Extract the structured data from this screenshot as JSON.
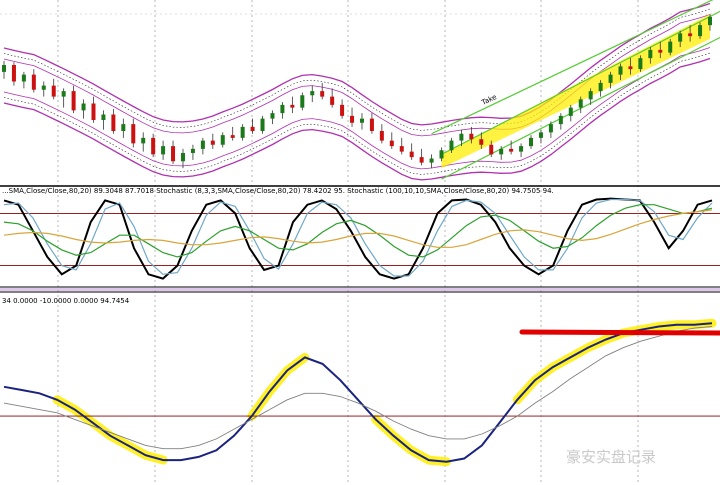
{
  "chart_data": [
    {
      "type": "candlestick",
      "panel": "price",
      "annotation": "Take",
      "candles": [
        [
          1.0,
          1.08,
          0.95,
          1.05
        ],
        [
          1.05,
          1.07,
          0.9,
          0.93
        ],
        [
          0.93,
          1.0,
          0.88,
          0.98
        ],
        [
          0.98,
          1.02,
          0.85,
          0.87
        ],
        [
          0.87,
          0.93,
          0.82,
          0.9
        ],
        [
          0.9,
          0.95,
          0.8,
          0.82
        ],
        [
          0.82,
          0.88,
          0.74,
          0.86
        ],
        [
          0.86,
          0.9,
          0.7,
          0.72
        ],
        [
          0.72,
          0.8,
          0.66,
          0.77
        ],
        [
          0.77,
          0.82,
          0.63,
          0.65
        ],
        [
          0.65,
          0.72,
          0.58,
          0.69
        ],
        [
          0.69,
          0.73,
          0.55,
          0.57
        ],
        [
          0.57,
          0.66,
          0.52,
          0.62
        ],
        [
          0.62,
          0.66,
          0.45,
          0.48
        ],
        [
          0.48,
          0.56,
          0.42,
          0.52
        ],
        [
          0.52,
          0.55,
          0.38,
          0.4
        ],
        [
          0.4,
          0.5,
          0.36,
          0.46
        ],
        [
          0.46,
          0.5,
          0.33,
          0.35
        ],
        [
          0.35,
          0.44,
          0.3,
          0.41
        ],
        [
          0.41,
          0.47,
          0.36,
          0.44
        ],
        [
          0.44,
          0.52,
          0.4,
          0.5
        ],
        [
          0.5,
          0.55,
          0.44,
          0.47
        ],
        [
          0.47,
          0.56,
          0.45,
          0.54
        ],
        [
          0.54,
          0.6,
          0.5,
          0.52
        ],
        [
          0.52,
          0.62,
          0.5,
          0.6
        ],
        [
          0.6,
          0.66,
          0.55,
          0.57
        ],
        [
          0.57,
          0.68,
          0.55,
          0.66
        ],
        [
          0.66,
          0.72,
          0.62,
          0.7
        ],
        [
          0.7,
          0.78,
          0.66,
          0.76
        ],
        [
          0.76,
          0.82,
          0.7,
          0.74
        ],
        [
          0.74,
          0.85,
          0.72,
          0.83
        ],
        [
          0.83,
          0.9,
          0.78,
          0.86
        ],
        [
          0.86,
          0.92,
          0.8,
          0.82
        ],
        [
          0.82,
          0.88,
          0.74,
          0.76
        ],
        [
          0.76,
          0.8,
          0.66,
          0.68
        ],
        [
          0.68,
          0.74,
          0.6,
          0.63
        ],
        [
          0.63,
          0.7,
          0.58,
          0.66
        ],
        [
          0.66,
          0.7,
          0.55,
          0.57
        ],
        [
          0.57,
          0.62,
          0.48,
          0.5
        ],
        [
          0.5,
          0.56,
          0.44,
          0.46
        ],
        [
          0.46,
          0.52,
          0.4,
          0.42
        ],
        [
          0.42,
          0.48,
          0.36,
          0.38
        ],
        [
          0.38,
          0.44,
          0.32,
          0.34
        ],
        [
          0.34,
          0.4,
          0.3,
          0.37
        ],
        [
          0.37,
          0.45,
          0.35,
          0.43
        ],
        [
          0.43,
          0.52,
          0.41,
          0.5
        ],
        [
          0.5,
          0.58,
          0.46,
          0.55
        ],
        [
          0.55,
          0.6,
          0.48,
          0.51
        ],
        [
          0.51,
          0.56,
          0.44,
          0.47
        ],
        [
          0.47,
          0.5,
          0.38,
          0.4
        ],
        [
          0.4,
          0.46,
          0.36,
          0.44
        ],
        [
          0.44,
          0.5,
          0.4,
          0.42
        ],
        [
          0.42,
          0.48,
          0.38,
          0.46
        ],
        [
          0.46,
          0.54,
          0.44,
          0.52
        ],
        [
          0.52,
          0.58,
          0.48,
          0.56
        ],
        [
          0.56,
          0.64,
          0.52,
          0.62
        ],
        [
          0.62,
          0.7,
          0.58,
          0.68
        ],
        [
          0.68,
          0.76,
          0.64,
          0.74
        ],
        [
          0.74,
          0.82,
          0.7,
          0.8
        ],
        [
          0.8,
          0.88,
          0.76,
          0.86
        ],
        [
          0.86,
          0.94,
          0.82,
          0.92
        ],
        [
          0.92,
          1.0,
          0.88,
          0.98
        ],
        [
          0.98,
          1.06,
          0.94,
          1.04
        ],
        [
          1.04,
          1.1,
          0.98,
          1.02
        ],
        [
          1.02,
          1.12,
          1.0,
          1.1
        ],
        [
          1.1,
          1.18,
          1.06,
          1.16
        ],
        [
          1.16,
          1.22,
          1.1,
          1.14
        ],
        [
          1.14,
          1.24,
          1.12,
          1.22
        ],
        [
          1.22,
          1.3,
          1.18,
          1.28
        ],
        [
          1.28,
          1.34,
          1.22,
          1.26
        ],
        [
          1.26,
          1.36,
          1.24,
          1.34
        ],
        [
          1.34,
          1.42,
          1.3,
          1.4
        ]
      ]
    },
    {
      "type": "line",
      "panel": "stochastic",
      "header": "...SMA,Close/Close,80,20) 89.3048 87.7018  Stochastic (8,3,3,SMA,Close/Close,80,20) 78.4202 95.  Stochastic (100,10,10,SMA,Close/Close,80,20) 94.7505 94.",
      "levels": [
        80,
        20
      ],
      "ylim": [
        0,
        100
      ],
      "series": [
        {
          "color": "#000000",
          "values": [
            95,
            90,
            60,
            30,
            10,
            20,
            70,
            95,
            90,
            40,
            10,
            5,
            20,
            60,
            90,
            95,
            80,
            40,
            15,
            20,
            70,
            90,
            95,
            85,
            60,
            30,
            10,
            5,
            10,
            40,
            80,
            95,
            96,
            90,
            70,
            40,
            20,
            10,
            20,
            60,
            90,
            96,
            97,
            96,
            95,
            70,
            40,
            60,
            90,
            95
          ]
        },
        {
          "color": "#6fa8c8",
          "values": [
            90,
            92,
            75,
            45,
            20,
            15,
            45,
            85,
            92,
            65,
            25,
            10,
            12,
            40,
            78,
            93,
            88,
            60,
            28,
            16,
            45,
            80,
            93,
            90,
            75,
            45,
            20,
            8,
            8,
            25,
            60,
            88,
            95,
            93,
            80,
            55,
            30,
            15,
            15,
            40,
            75,
            92,
            96,
            96,
            95,
            82,
            55,
            50,
            75,
            92
          ]
        },
        {
          "color": "#2ca02c",
          "values": [
            70,
            68,
            60,
            48,
            38,
            32,
            35,
            45,
            55,
            55,
            45,
            35,
            30,
            35,
            48,
            60,
            65,
            60,
            50,
            40,
            38,
            45,
            58,
            68,
            72,
            66,
            55,
            42,
            32,
            30,
            38,
            52,
            66,
            76,
            78,
            72,
            60,
            48,
            40,
            42,
            52,
            66,
            78,
            86,
            90,
            90,
            85,
            80,
            82,
            86
          ]
        },
        {
          "color": "#d9a53a",
          "values": [
            55,
            57,
            58,
            57,
            54,
            50,
            47,
            46,
            47,
            49,
            50,
            49,
            46,
            44,
            44,
            46,
            49,
            52,
            53,
            51,
            48,
            46,
            47,
            50,
            54,
            57,
            57,
            54,
            49,
            44,
            41,
            41,
            44,
            50,
            56,
            60,
            61,
            59,
            55,
            51,
            49,
            51,
            56,
            62,
            68,
            73,
            77,
            80,
            82,
            84
          ]
        }
      ]
    },
    {
      "type": "line",
      "panel": "oscillator",
      "header": "34 0.0000 -10.0000 0.0000 94.7454",
      "levels": [
        30
      ],
      "ylim": [
        0,
        100
      ],
      "series": [
        {
          "color": "#1a237e",
          "values": [
            48,
            46,
            44,
            40,
            34,
            26,
            18,
            12,
            6,
            3,
            3,
            5,
            9,
            18,
            30,
            45,
            58,
            66,
            62,
            52,
            40,
            28,
            18,
            9,
            3,
            2,
            4,
            12,
            26,
            40,
            52,
            60,
            66,
            72,
            77,
            81,
            83,
            85,
            86,
            86,
            87
          ]
        },
        {
          "color": "#808080",
          "values": [
            38,
            36,
            34,
            32,
            28,
            24,
            20,
            16,
            12,
            10,
            10,
            12,
            16,
            22,
            28,
            34,
            40,
            44,
            44,
            42,
            38,
            33,
            27,
            22,
            18,
            16,
            16,
            19,
            24,
            30,
            38,
            45,
            53,
            60,
            67,
            72,
            76,
            79,
            82,
            84,
            85
          ]
        }
      ]
    }
  ],
  "watermark": "豪安实盘记录"
}
